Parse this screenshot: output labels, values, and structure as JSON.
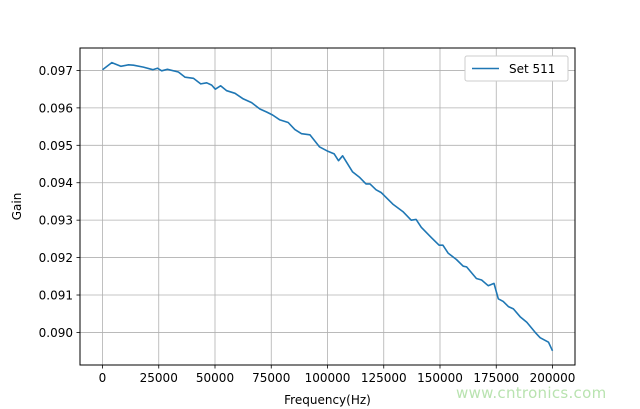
{
  "chart_data": {
    "type": "line",
    "title": "",
    "xlabel": "Frequency(Hz)",
    "ylabel": "Gain",
    "xlim": [
      -10000,
      210000
    ],
    "ylim": [
      0.08913,
      0.0976
    ],
    "xticks": [
      0,
      25000,
      50000,
      75000,
      100000,
      125000,
      150000,
      175000,
      200000
    ],
    "yticks": [
      0.09,
      0.091,
      0.092,
      0.093,
      0.094,
      0.095,
      0.096,
      0.097
    ],
    "ytick_labels": [
      "0.090",
      "0.091",
      "0.092",
      "0.093",
      "0.094",
      "0.095",
      "0.096",
      "0.097"
    ],
    "grid": true,
    "legend_position": "top-right",
    "series": [
      {
        "name": "Set 511",
        "color": "#1f77b4",
        "x": [
          0,
          4140,
          8140,
          11540,
          13760,
          18200,
          22340,
          24400,
          26330,
          28850,
          33730,
          36690,
          40380,
          43640,
          46300,
          48520,
          50150,
          52500,
          55180,
          58880,
          62570,
          66270,
          69970,
          72930,
          75590,
          78850,
          82540,
          85500,
          88460,
          92160,
          96400,
          100200,
          102980,
          104900,
          106700,
          111160,
          114140,
          117100,
          118900,
          121600,
          123800,
          129000,
          133500,
          137200,
          139400,
          141700,
          146100,
          149600,
          151300,
          153600,
          157300,
          160300,
          161800,
          166200,
          168500,
          171400,
          174000,
          175900,
          178100,
          180400,
          182600,
          185600,
          188600,
          192300,
          194500,
          198200,
          200000
        ],
        "y": [
          0.09702,
          0.09721,
          0.09711,
          0.09715,
          0.09714,
          0.09709,
          0.09702,
          0.09706,
          0.09699,
          0.09703,
          0.09696,
          0.09682,
          0.09679,
          0.09664,
          0.09667,
          0.09661,
          0.0965,
          0.09659,
          0.09646,
          0.09639,
          0.09624,
          0.09614,
          0.09597,
          0.09589,
          0.09581,
          0.09568,
          0.09561,
          0.09542,
          0.09531,
          0.09528,
          0.09496,
          0.09484,
          0.09477,
          0.09459,
          0.09472,
          0.09429,
          0.09415,
          0.09397,
          0.09397,
          0.09381,
          0.09374,
          0.09343,
          0.09323,
          0.093,
          0.09302,
          0.09281,
          0.09254,
          0.09233,
          0.09233,
          0.09212,
          0.09195,
          0.09177,
          0.09175,
          0.09144,
          0.0914,
          0.09125,
          0.09131,
          0.0909,
          0.09083,
          0.09069,
          0.09063,
          0.09042,
          0.09027,
          0.09,
          0.08986,
          0.08974,
          0.08951
        ]
      }
    ]
  },
  "watermark": "www.cntronics.com"
}
